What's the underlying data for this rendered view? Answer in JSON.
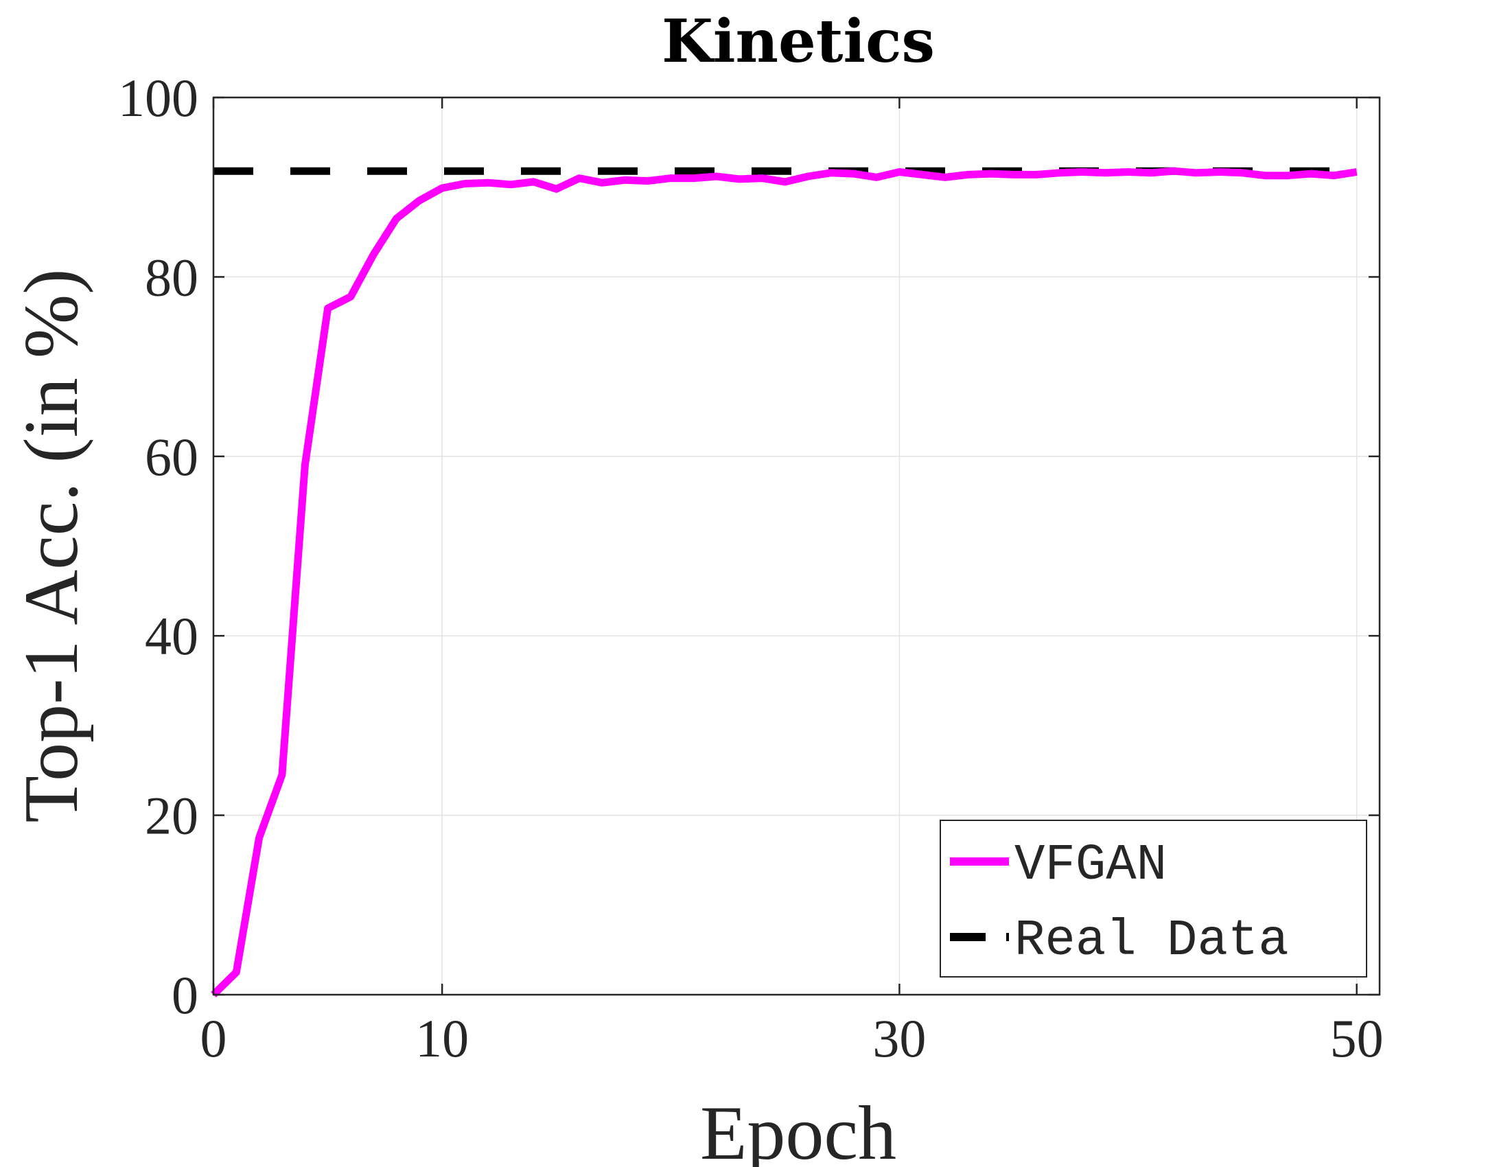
{
  "chart_data": {
    "type": "line",
    "title": "Kinetics",
    "xlabel": "Epoch",
    "ylabel": "Top-1 Acc. (in %)",
    "xlim": [
      0,
      51
    ],
    "ylim": [
      0,
      100
    ],
    "xticks": [
      0,
      10,
      30,
      50
    ],
    "yticks": [
      0,
      20,
      40,
      60,
      80,
      100
    ],
    "grid": true,
    "legend_position": "bottom-right",
    "series": [
      {
        "name": "VFGAN",
        "color": "#ff00ff",
        "style": "solid",
        "x": [
          0,
          1,
          2,
          3,
          4,
          5,
          6,
          7,
          8,
          9,
          10,
          11,
          12,
          13,
          14,
          15,
          16,
          17,
          18,
          19,
          20,
          21,
          22,
          23,
          24,
          25,
          26,
          27,
          28,
          29,
          30,
          31,
          32,
          33,
          34,
          35,
          36,
          37,
          38,
          39,
          40,
          41,
          42,
          43,
          44,
          45,
          46,
          47,
          48,
          49,
          50
        ],
        "y": [
          0,
          2.5,
          17.5,
          24.5,
          59,
          76.5,
          77.8,
          82.5,
          86.5,
          88.5,
          89.9,
          90.4,
          90.5,
          90.3,
          90.6,
          89.8,
          91,
          90.5,
          90.8,
          90.7,
          91,
          91,
          91.2,
          90.9,
          91,
          90.6,
          91.2,
          91.6,
          91.5,
          91.1,
          91.7,
          91.4,
          91.1,
          91.4,
          91.5,
          91.4,
          91.4,
          91.6,
          91.7,
          91.6,
          91.7,
          91.6,
          91.8,
          91.6,
          91.7,
          91.6,
          91.3,
          91.3,
          91.5,
          91.3,
          91.7
        ]
      },
      {
        "name": "Real Data",
        "color": "#000000",
        "style": "dashed",
        "x": [
          0,
          50
        ],
        "y": [
          91.8,
          91.8
        ]
      }
    ]
  }
}
